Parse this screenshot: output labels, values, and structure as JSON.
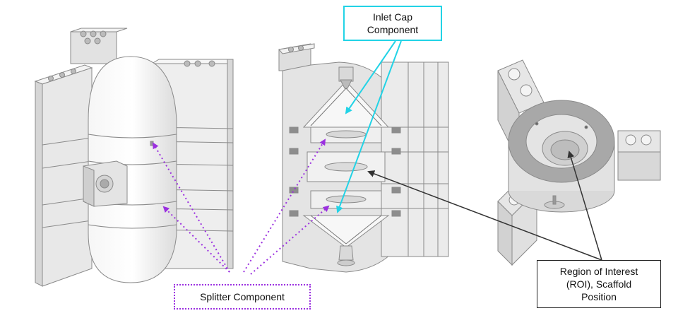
{
  "callouts": {
    "inlet_cap": "Inlet Cap\nComponent",
    "splitter": "Splitter Component",
    "roi": "Region of Interest\n(ROI), Scaffold\nPosition"
  },
  "colors": {
    "inlet_cap_arrow": "#22d3e6",
    "splitter_arrow": "#9b30e0",
    "roi_arrow": "#333333",
    "part_body": "#ececec",
    "part_edge": "#8a8a8a",
    "part_dark": "#9a9a9a"
  },
  "views": [
    "assembled-exterior-view",
    "sectioned-view",
    "roi-insert-view"
  ]
}
